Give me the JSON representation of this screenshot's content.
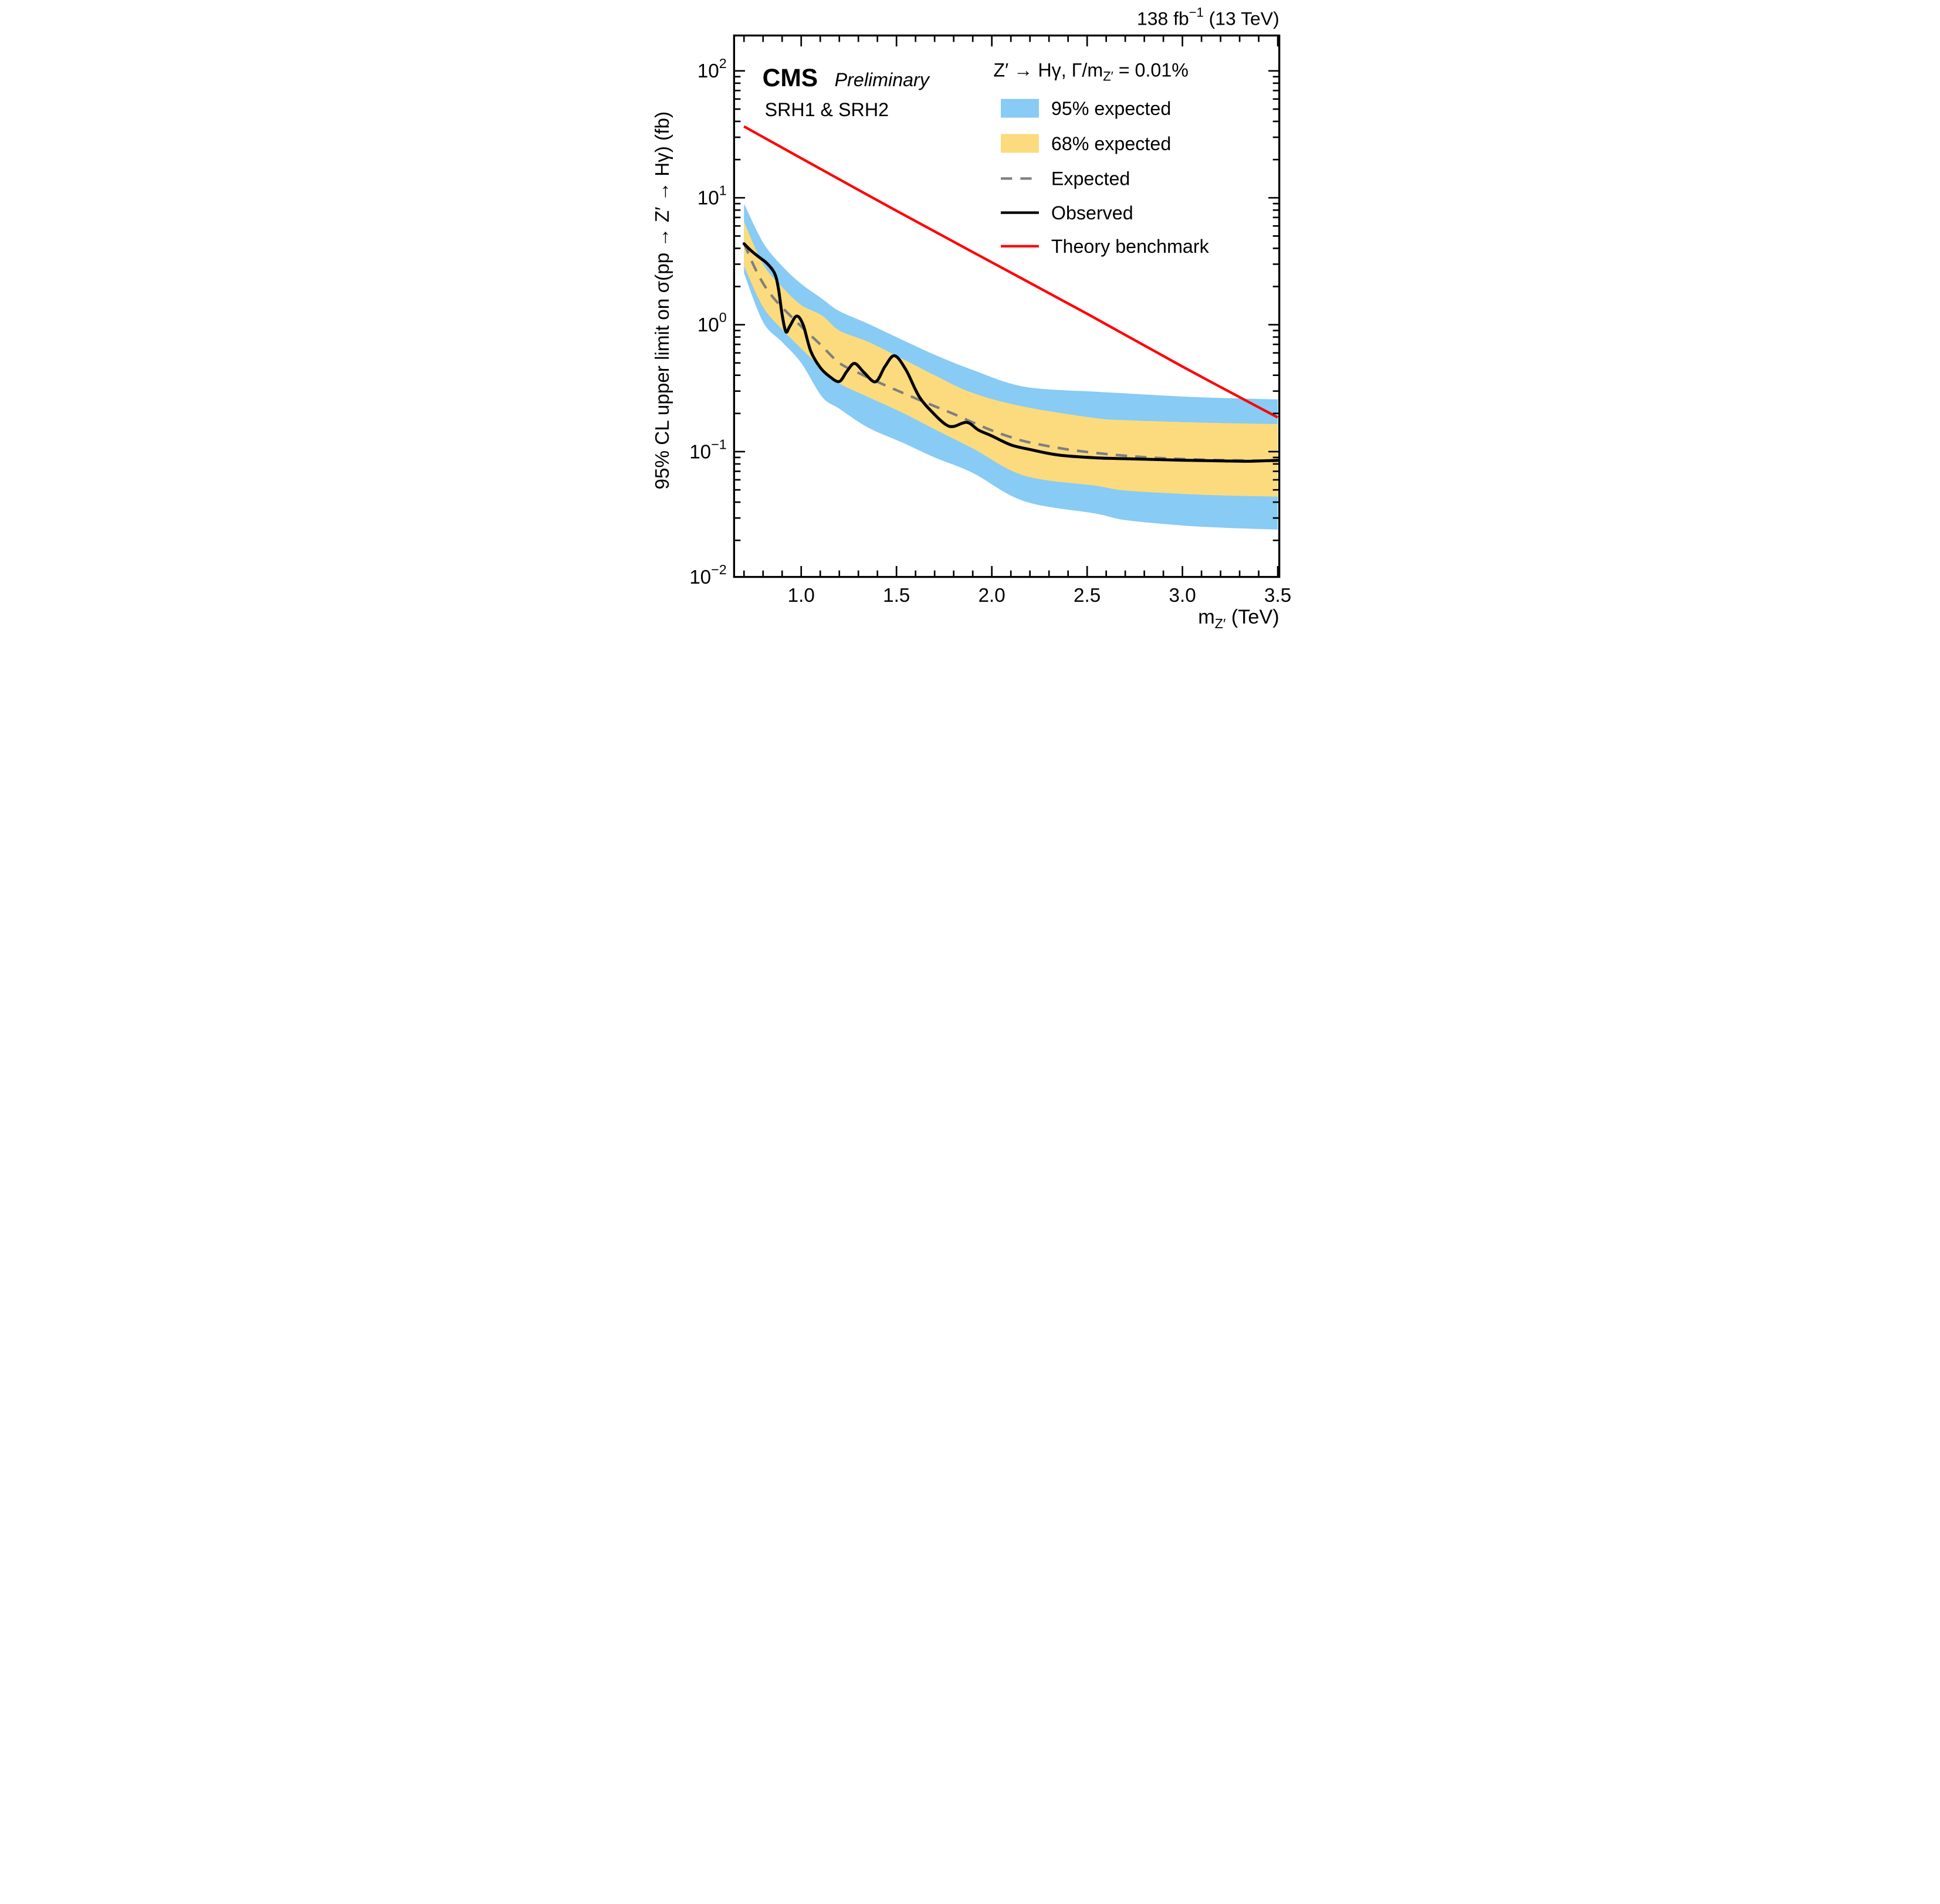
{
  "header": {
    "lumi_pre": "138 fb",
    "lumi_sup": "−1",
    "lumi_post": " (13 TeV)"
  },
  "annotations": {
    "experiment": "CMS",
    "status": "Preliminary",
    "regions": "SRH1 & SRH2"
  },
  "legend": {
    "header_pre": "Z′ → Hγ,  Γ/m",
    "header_sub": "Z′",
    "header_post": " = 0.01%",
    "items": [
      {
        "label": "95% expected",
        "type": "band"
      },
      {
        "label": "68% expected",
        "type": "band"
      },
      {
        "label": "Expected",
        "type": "dashed-line"
      },
      {
        "label": "Observed",
        "type": "solid-line"
      },
      {
        "label": "Theory benchmark",
        "type": "red-line"
      }
    ]
  },
  "axes": {
    "x_label_pre": "m",
    "x_label_sub": "Z′",
    "x_label_post": " (TeV)",
    "y_label": "95% CL upper limit on σ(pp → Z′ → Hγ) (fb)"
  },
  "colors": {
    "band_95": "#88CBF4",
    "band_68": "#FBDB7E",
    "expected": "#7F7F7F",
    "observed": "#000000",
    "theory": "#FF0000",
    "frame": "#000000"
  },
  "chart_data": {
    "type": "line",
    "title": "138 fb−1 (13 TeV), CMS Preliminary, SRH1 & SRH2",
    "xlabel": "m_Z' (TeV)",
    "ylabel": "95% CL upper limit on σ(pp → Z' → Hγ) (fb)",
    "x_range": [
      0.648,
      3.508
    ],
    "y_range": [
      0.0103,
      190
    ],
    "y_scale": "log",
    "grid": false,
    "legend_position": "top-right",
    "x_major_ticks": [
      1.0,
      1.5,
      2.0,
      2.5,
      3.0,
      3.5
    ],
    "x_tick_labels": [
      "1.0",
      "1.5",
      "2.0",
      "2.5",
      "3.0",
      "3.5"
    ],
    "x_minor_start": 0.7,
    "x_minor_step": 0.1,
    "y_tick_exponents": [
      -2,
      -1,
      0,
      1,
      2
    ],
    "series": {
      "expected": {
        "name": "Expected (median, 95% CL upper limit, fb)",
        "x": [
          0.7,
          0.75,
          0.8,
          0.85,
          0.9,
          0.95,
          1.0,
          1.1,
          1.2,
          1.3,
          1.4,
          1.5,
          1.6,
          1.7,
          1.8,
          1.9,
          2.0,
          2.1,
          2.2,
          2.4,
          2.6,
          2.8,
          3.0,
          3.2,
          3.5
        ],
        "y": [
          4.4,
          2.95,
          2.12,
          1.66,
          1.37,
          1.15,
          0.97,
          0.7,
          0.5,
          0.418,
          0.355,
          0.305,
          0.263,
          0.228,
          0.198,
          0.17,
          0.147,
          0.13,
          0.118,
          0.104,
          0.0958,
          0.0905,
          0.0875,
          0.0858,
          0.0845
        ]
      },
      "observed": {
        "name": "Observed (95% CL upper limit, fb)",
        "x": [
          0.7,
          0.74,
          0.78,
          0.82,
          0.86,
          0.88,
          0.9,
          0.92,
          0.94,
          0.976,
          1.01,
          1.05,
          1.1,
          1.15,
          1.2,
          1.24,
          1.28,
          1.33,
          1.39,
          1.44,
          1.49,
          1.55,
          1.62,
          1.7,
          1.76,
          1.8,
          1.87,
          1.93,
          2.0,
          2.1,
          2.2,
          2.35,
          2.55,
          2.7,
          3.0,
          3.2,
          3.35,
          3.5
        ],
        "y": [
          4.35,
          3.8,
          3.4,
          3.05,
          2.55,
          1.95,
          1.2,
          0.88,
          0.97,
          1.17,
          1.0,
          0.62,
          0.46,
          0.39,
          0.357,
          0.43,
          0.496,
          0.42,
          0.355,
          0.47,
          0.57,
          0.44,
          0.27,
          0.196,
          0.163,
          0.158,
          0.17,
          0.148,
          0.133,
          0.113,
          0.104,
          0.094,
          0.0893,
          0.088,
          0.0856,
          0.0846,
          0.084,
          0.0855
        ]
      },
      "theory": {
        "name": "Theory benchmark (fb)",
        "x": [
          0.7,
          1.0,
          1.5,
          2.0,
          2.5,
          3.0,
          3.5
        ],
        "y": [
          36.5,
          20.5,
          7.9,
          3.1,
          1.22,
          0.468,
          0.186
        ]
      },
      "band68": {
        "name": "68% expected band",
        "x": [
          0.7,
          0.8,
          0.9,
          1.0,
          1.11,
          1.2,
          1.35,
          1.53,
          1.7,
          1.9,
          2.17,
          2.54,
          2.7,
          3.0,
          3.2,
          3.5
        ],
        "lo": [
          2.9,
          1.38,
          0.92,
          0.65,
          0.45,
          0.345,
          0.27,
          0.203,
          0.15,
          0.106,
          0.0647,
          0.054,
          0.0494,
          0.0465,
          0.0452,
          0.0442
        ],
        "hi": [
          6.5,
          3.0,
          1.98,
          1.43,
          1.18,
          0.9,
          0.735,
          0.54,
          0.4,
          0.29,
          0.226,
          0.184,
          0.177,
          0.171,
          0.168,
          0.165
        ]
      },
      "band95": {
        "name": "95% expected band",
        "x": [
          0.7,
          0.8,
          0.9,
          1.0,
          1.11,
          1.2,
          1.35,
          1.53,
          1.7,
          1.9,
          2.17,
          2.54,
          2.7,
          3.0,
          3.2,
          3.5
        ],
        "lo": [
          2.55,
          1.05,
          0.73,
          0.5,
          0.27,
          0.218,
          0.155,
          0.118,
          0.09,
          0.068,
          0.0407,
          0.0326,
          0.0289,
          0.0262,
          0.0252,
          0.0243
        ],
        "hi": [
          9.0,
          4.45,
          2.9,
          2.1,
          1.6,
          1.28,
          1.02,
          0.76,
          0.58,
          0.44,
          0.325,
          0.297,
          0.288,
          0.272,
          0.265,
          0.258
        ]
      }
    }
  }
}
